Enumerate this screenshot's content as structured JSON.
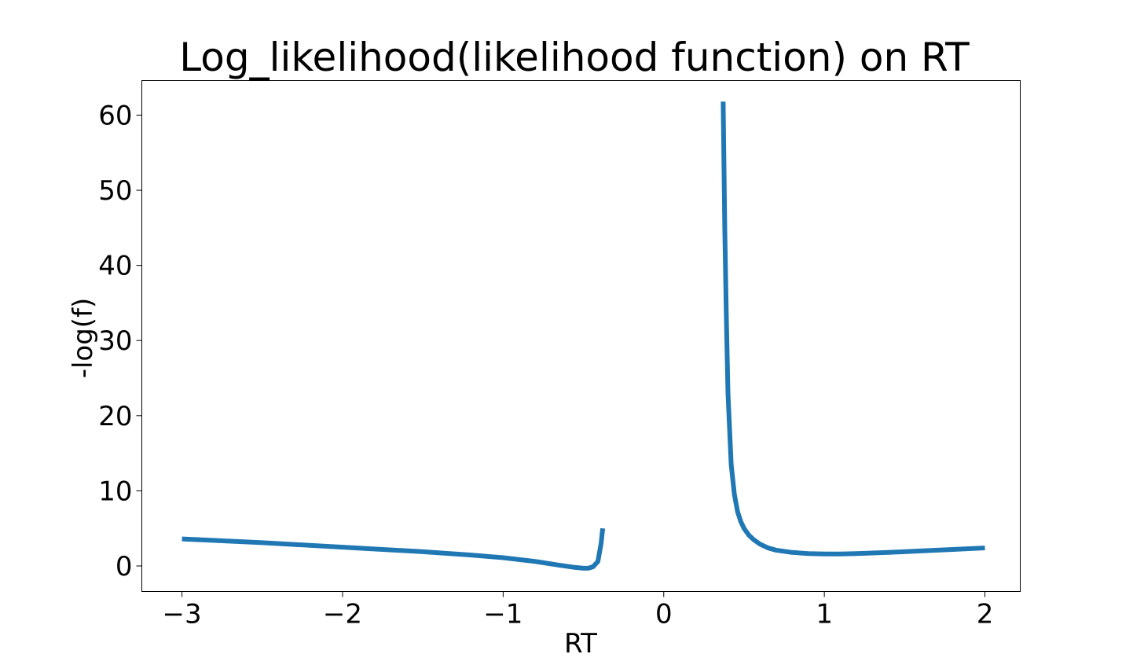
{
  "chart_data": {
    "type": "line",
    "title": "Log_likelihood(likelihood function) on RT",
    "xlabel": "RT",
    "ylabel": "-log(f)",
    "xlim": [
      -3.25,
      2.22
    ],
    "ylim": [
      -3.4,
      64.6
    ],
    "xticks": [
      -3,
      -2,
      -1,
      0,
      1,
      2
    ],
    "xtick_labels": [
      "−3",
      "−2",
      "−1",
      "0",
      "1",
      "2"
    ],
    "yticks": [
      0,
      10,
      20,
      30,
      40,
      50,
      60
    ],
    "ytick_labels": [
      "0",
      "10",
      "20",
      "30",
      "40",
      "50",
      "60"
    ],
    "grid": false,
    "series": [
      {
        "color": "#1f77b4",
        "segments": [
          {
            "x": [
              -3.0,
              -2.5,
              -2.0,
              -1.5,
              -1.2,
              -1.0,
              -0.8,
              -0.65,
              -0.55,
              -0.5,
              -0.47,
              -0.44,
              -0.41,
              -0.39,
              -0.38
            ],
            "y": [
              3.6,
              3.1,
              2.5,
              1.9,
              1.45,
              1.1,
              0.6,
              0.1,
              -0.2,
              -0.3,
              -0.3,
              -0.1,
              0.6,
              3.0,
              5.0
            ]
          },
          {
            "x": [
              0.37,
              0.38,
              0.39,
              0.4,
              0.42,
              0.44,
              0.46,
              0.48,
              0.5,
              0.53,
              0.56,
              0.6,
              0.65,
              0.7,
              0.8,
              0.9,
              1.0,
              1.1,
              1.2,
              1.4,
              1.6,
              1.8,
              2.0
            ],
            "y": [
              61.8,
              45.0,
              33.0,
              23.0,
              13.5,
              9.5,
              7.2,
              5.9,
              5.0,
              4.1,
              3.5,
              2.9,
              2.4,
              2.1,
              1.8,
              1.65,
              1.6,
              1.6,
              1.65,
              1.8,
              2.0,
              2.2,
              2.4
            ]
          }
        ]
      }
    ]
  }
}
